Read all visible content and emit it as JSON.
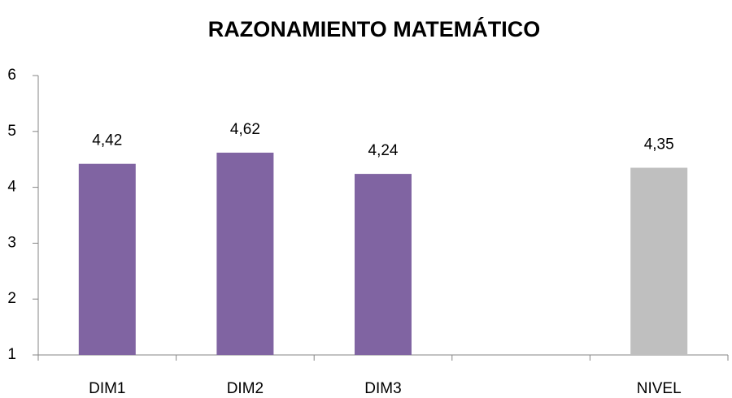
{
  "chart_data": {
    "type": "bar",
    "title": "RAZONAMIENTO MATEMÁTICO",
    "categories": [
      "DIM1",
      "DIM2",
      "DIM3",
      null,
      "NIVEL"
    ],
    "values": [
      4.42,
      4.62,
      4.24,
      null,
      4.35
    ],
    "value_labels": [
      "4,42",
      "4,62",
      "4,24",
      null,
      "4,35"
    ],
    "colors": [
      "#8064a2",
      "#8064a2",
      "#8064a2",
      null,
      "#bfbfbf"
    ],
    "ylim": [
      1,
      6
    ],
    "yticks": [
      1,
      2,
      3,
      4,
      5,
      6
    ],
    "grid": false
  }
}
